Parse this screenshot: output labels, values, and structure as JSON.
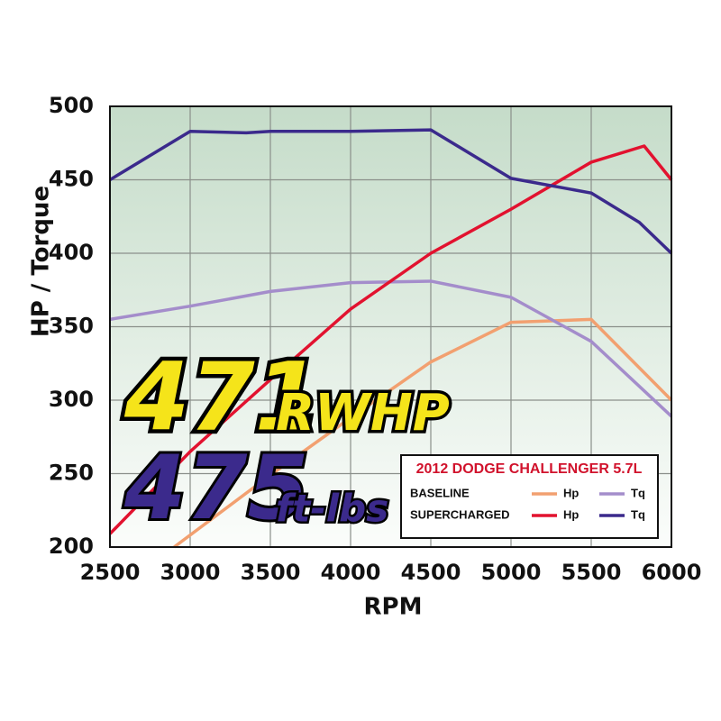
{
  "chart_data": {
    "type": "line",
    "y_label": "HP / Torque",
    "x_label": "RPM",
    "xlim": [
      2500,
      6000
    ],
    "xticks": [
      2500,
      3000,
      3500,
      4000,
      4500,
      5000,
      5500,
      6000
    ],
    "ylim": [
      200,
      500
    ],
    "yticks": [
      200,
      250,
      300,
      350,
      400,
      450,
      500
    ],
    "grid": true,
    "annotations": [
      "471",
      "RWHP",
      "475",
      "ft-lbs"
    ],
    "legend_title": "2012 DODGE CHALLENGER 5.7L",
    "series_groups": [
      {
        "name": "BASELINE",
        "series": [
          {
            "name": "Hp",
            "color": "#f2a070",
            "x": [
              2900,
              3500,
              4000,
              4500,
              5000,
              5500,
              6000
            ],
            "values": [
              200,
              249,
              288,
              326,
              353,
              355,
              300
            ]
          },
          {
            "name": "Tq",
            "color": "#a48dcb",
            "x": [
              2500,
              3000,
              3500,
              4000,
              4500,
              5000,
              5500,
              6000
            ],
            "values": [
              355,
              364,
              374,
              380,
              381,
              370,
              340,
              289
            ]
          }
        ]
      },
      {
        "name": "SUPERCHARGED",
        "series": [
          {
            "name": "Hp",
            "color": "#e2122f",
            "x": [
              2500,
              3000,
              3500,
              4000,
              4500,
              5000,
              5500,
              5830,
              6000
            ],
            "values": [
              209,
              265,
              314,
              362,
              400,
              430,
              462,
              473,
              450
            ]
          },
          {
            "name": "Tq",
            "color": "#3b2a8c",
            "x": [
              2500,
              3000,
              3350,
              3500,
              4000,
              4500,
              5000,
              5500,
              5800,
              6000
            ],
            "values": [
              450,
              483,
              482,
              483,
              483,
              484,
              451,
              441,
              421,
              400
            ]
          }
        ]
      }
    ]
  }
}
